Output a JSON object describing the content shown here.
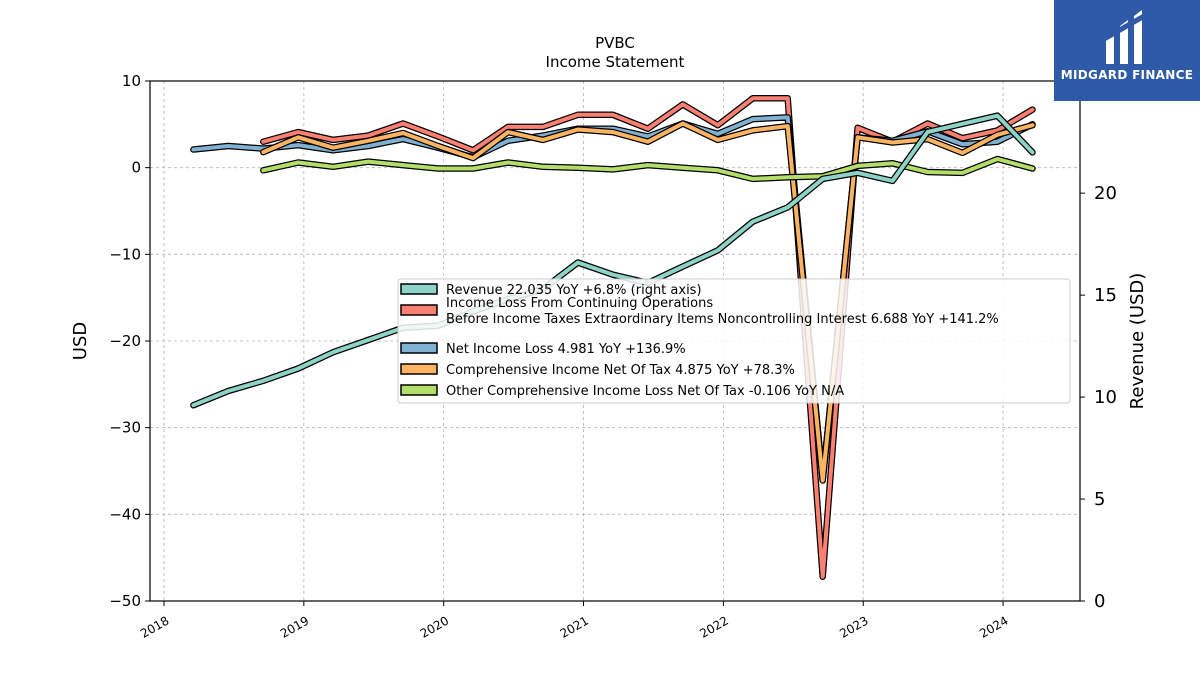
{
  "logo": {
    "text": "MIDGARD FINANCE",
    "icon": "midgard-logo-icon",
    "bg_color": "#2f5aa8"
  },
  "chart_data": {
    "type": "line",
    "title": "PVBC",
    "subtitle": "Income Statement",
    "ylabel_left": "USD",
    "ylabel_right": "Revenue (USD)",
    "ylim_left": [
      -50,
      10
    ],
    "ylim_right": [
      0,
      25.5
    ],
    "yticks_left": [
      10,
      0,
      -10,
      -20,
      -30,
      -40,
      -50
    ],
    "yticks_right": [
      20,
      15,
      10,
      5,
      0
    ],
    "xlim": [
      2017.9,
      2024.55
    ],
    "xticks": [
      2018,
      2019,
      2020,
      2021,
      2022,
      2023,
      2024
    ],
    "grid": true,
    "legend_placement": "center-right",
    "series": [
      {
        "name": "Revenue  22.035 YoY +6.8% (right axis)",
        "axis": "right",
        "color": "#8dd3c7",
        "x": [
          2018.21,
          2018.46,
          2018.71,
          2018.96,
          2019.21,
          2019.46,
          2019.71,
          2019.96,
          2020.21,
          2020.46,
          2020.71,
          2020.96,
          2021.21,
          2021.46,
          2021.71,
          2021.96,
          2022.21,
          2022.46,
          2022.71,
          2022.96,
          2023.21,
          2023.46,
          2023.71,
          2023.96,
          2024.21
        ],
        "values": [
          9.6,
          10.3,
          10.8,
          11.4,
          12.2,
          12.8,
          13.4,
          13.5,
          14.2,
          14.8,
          15.3,
          16.6,
          16.0,
          15.6,
          16.4,
          17.2,
          18.6,
          19.3,
          20.7,
          21.0,
          20.6,
          23.0,
          23.4,
          23.8,
          22.0
        ]
      },
      {
        "name": "Income Loss From Continuing Operations Before Income Taxes Extraordinary Items Noncontrolling Interest  6.688 YoY +141.2%",
        "name_lines": [
          "Income Loss From Continuing Operations",
          "Before Income Taxes Extraordinary Items Noncontrolling Interest  6.688 YoY +141.2%"
        ],
        "axis": "left",
        "color": "#fb8072",
        "x": [
          2018.71,
          2018.96,
          2019.21,
          2019.46,
          2019.71,
          2019.96,
          2020.21,
          2020.46,
          2020.71,
          2020.96,
          2021.21,
          2021.46,
          2021.71,
          2021.96,
          2022.21,
          2022.46,
          2022.71,
          2022.96,
          2023.21,
          2023.46,
          2023.71,
          2023.96,
          2024.21
        ],
        "values": [
          3.0,
          4.1,
          3.2,
          3.7,
          5.1,
          3.6,
          2.0,
          4.7,
          4.7,
          6.1,
          6.1,
          4.5,
          7.3,
          4.9,
          8.0,
          8.0,
          -47.2,
          4.6,
          3.0,
          5.1,
          3.4,
          4.3,
          6.7
        ]
      },
      {
        "name": "Net Income Loss  4.981 YoY +136.9%",
        "axis": "left",
        "color": "#80b1d3",
        "x": [
          2018.21,
          2018.46,
          2018.71,
          2018.96,
          2019.21,
          2019.46,
          2019.71,
          2019.96,
          2020.21,
          2020.46,
          2020.71,
          2020.96,
          2021.21,
          2021.46,
          2021.71,
          2021.96,
          2022.21,
          2022.46,
          2022.71,
          2022.96,
          2023.21,
          2023.46,
          2023.71,
          2023.96,
          2024.21
        ],
        "values": [
          2.1,
          2.5,
          2.2,
          2.6,
          2.0,
          2.5,
          3.3,
          2.3,
          1.2,
          3.1,
          3.7,
          4.5,
          4.5,
          3.6,
          5.1,
          3.9,
          5.6,
          5.8,
          -36.0,
          3.5,
          3.1,
          4.2,
          2.7,
          3.0,
          5.0
        ]
      },
      {
        "name": "Comprehensive Income Net Of Tax  4.875 YoY +78.3%",
        "axis": "left",
        "color": "#fdb462",
        "x": [
          2018.71,
          2018.96,
          2019.21,
          2019.46,
          2019.71,
          2019.96,
          2020.21,
          2020.46,
          2020.71,
          2020.96,
          2021.21,
          2021.46,
          2021.71,
          2021.96,
          2022.21,
          2022.46,
          2022.71,
          2022.96,
          2023.21,
          2023.46,
          2023.71,
          2023.96,
          2024.21
        ],
        "values": [
          1.8,
          3.5,
          2.3,
          3.1,
          4.0,
          2.5,
          1.1,
          4.1,
          3.2,
          4.4,
          4.1,
          3.0,
          5.1,
          3.2,
          4.3,
          4.8,
          -36.1,
          3.5,
          2.9,
          3.3,
          1.7,
          3.8,
          4.9
        ]
      },
      {
        "name": "Other Comprehensive Income Loss Net Of Tax  -0.106 YoY N/A",
        "axis": "left",
        "color": "#b3de69",
        "x": [
          2018.71,
          2018.96,
          2019.21,
          2019.46,
          2019.71,
          2019.96,
          2020.21,
          2020.46,
          2020.71,
          2020.96,
          2021.21,
          2021.46,
          2021.71,
          2021.96,
          2022.21,
          2022.46,
          2022.71,
          2022.96,
          2023.21,
          2023.46,
          2023.71,
          2023.96,
          2024.21
        ],
        "values": [
          -0.3,
          0.6,
          0.1,
          0.7,
          0.3,
          -0.1,
          -0.1,
          0.6,
          0.1,
          0.0,
          -0.2,
          0.3,
          0.0,
          -0.3,
          -1.3,
          -1.1,
          -1.0,
          0.2,
          0.5,
          -0.5,
          -0.6,
          1.0,
          -0.1
        ]
      }
    ]
  }
}
